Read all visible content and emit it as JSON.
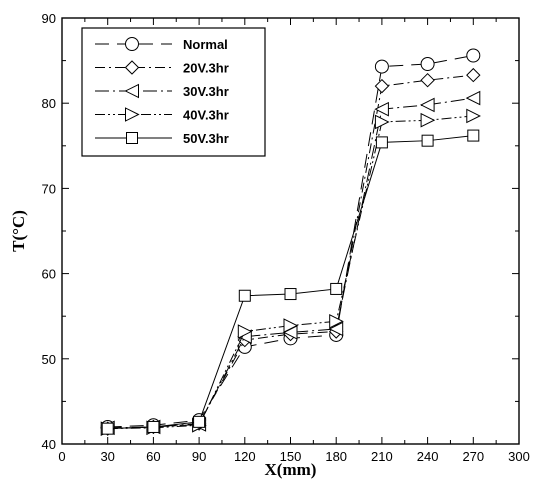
{
  "chart_data": {
    "type": "line",
    "title": "",
    "xlabel": "X(mm)",
    "ylabel": "T(°C)",
    "xlim": [
      0,
      300
    ],
    "ylim": [
      40,
      90
    ],
    "xticks": [
      0,
      30,
      60,
      90,
      120,
      150,
      180,
      210,
      240,
      270,
      300
    ],
    "yticks": [
      40,
      50,
      60,
      70,
      80,
      90
    ],
    "grid": false,
    "legend_position": "top-left",
    "x": [
      30,
      60,
      90,
      120,
      150,
      180,
      210,
      240,
      270
    ],
    "series": [
      {
        "name": "Normal",
        "marker": "circle",
        "dash": "long-dash",
        "values": [
          42.0,
          42.2,
          42.8,
          51.4,
          52.4,
          52.8,
          84.3,
          84.6,
          85.6
        ]
      },
      {
        "name": "20V.3hr",
        "marker": "diamond",
        "dash": "dash-dot",
        "values": [
          41.8,
          42.0,
          42.4,
          52.2,
          52.9,
          53.2,
          82.0,
          82.7,
          83.3
        ]
      },
      {
        "name": "30V.3hr",
        "marker": "triangle-left",
        "dash": "long-dash-dot",
        "values": [
          41.9,
          42.0,
          42.3,
          52.6,
          53.1,
          53.5,
          79.3,
          79.8,
          80.6
        ]
      },
      {
        "name": "40V.3hr",
        "marker": "triangle-right",
        "dash": "dash-dot-dot",
        "values": [
          41.8,
          41.9,
          42.2,
          53.2,
          53.9,
          54.4,
          77.8,
          78.0,
          78.5
        ]
      },
      {
        "name": "50V.3hr",
        "marker": "square",
        "dash": "solid",
        "values": [
          41.8,
          42.0,
          42.6,
          57.4,
          57.6,
          58.2,
          75.4,
          75.6,
          76.2
        ]
      }
    ]
  }
}
